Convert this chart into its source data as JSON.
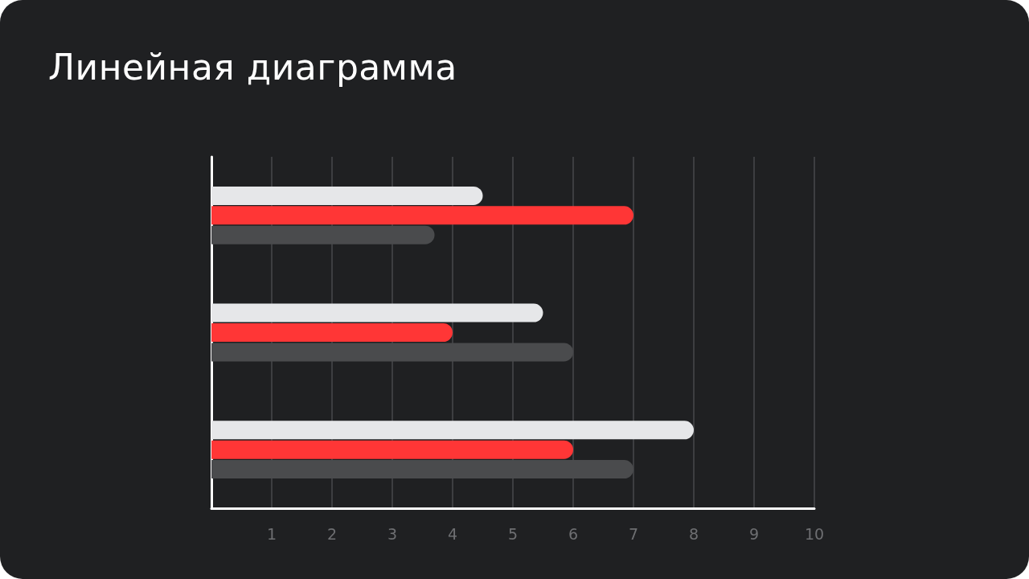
{
  "chart_data": {
    "type": "bar",
    "orientation": "horizontal",
    "title": "Линейная диаграмма",
    "categories": [
      null,
      null,
      null
    ],
    "series": [
      {
        "color": "#e6e7e9",
        "values": [
          4.5,
          5.5,
          8
        ]
      },
      {
        "color": "#ff3636",
        "values": [
          7,
          4,
          6
        ]
      },
      {
        "color": "#4a4b4d",
        "values": [
          3.7,
          6,
          7
        ]
      }
    ],
    "xlim": [
      0,
      10
    ],
    "xticks": [
      {
        "value": 0,
        "label": null
      },
      1,
      2,
      3,
      4,
      5,
      6,
      7,
      8,
      9,
      10
    ],
    "grid": "x"
  }
}
